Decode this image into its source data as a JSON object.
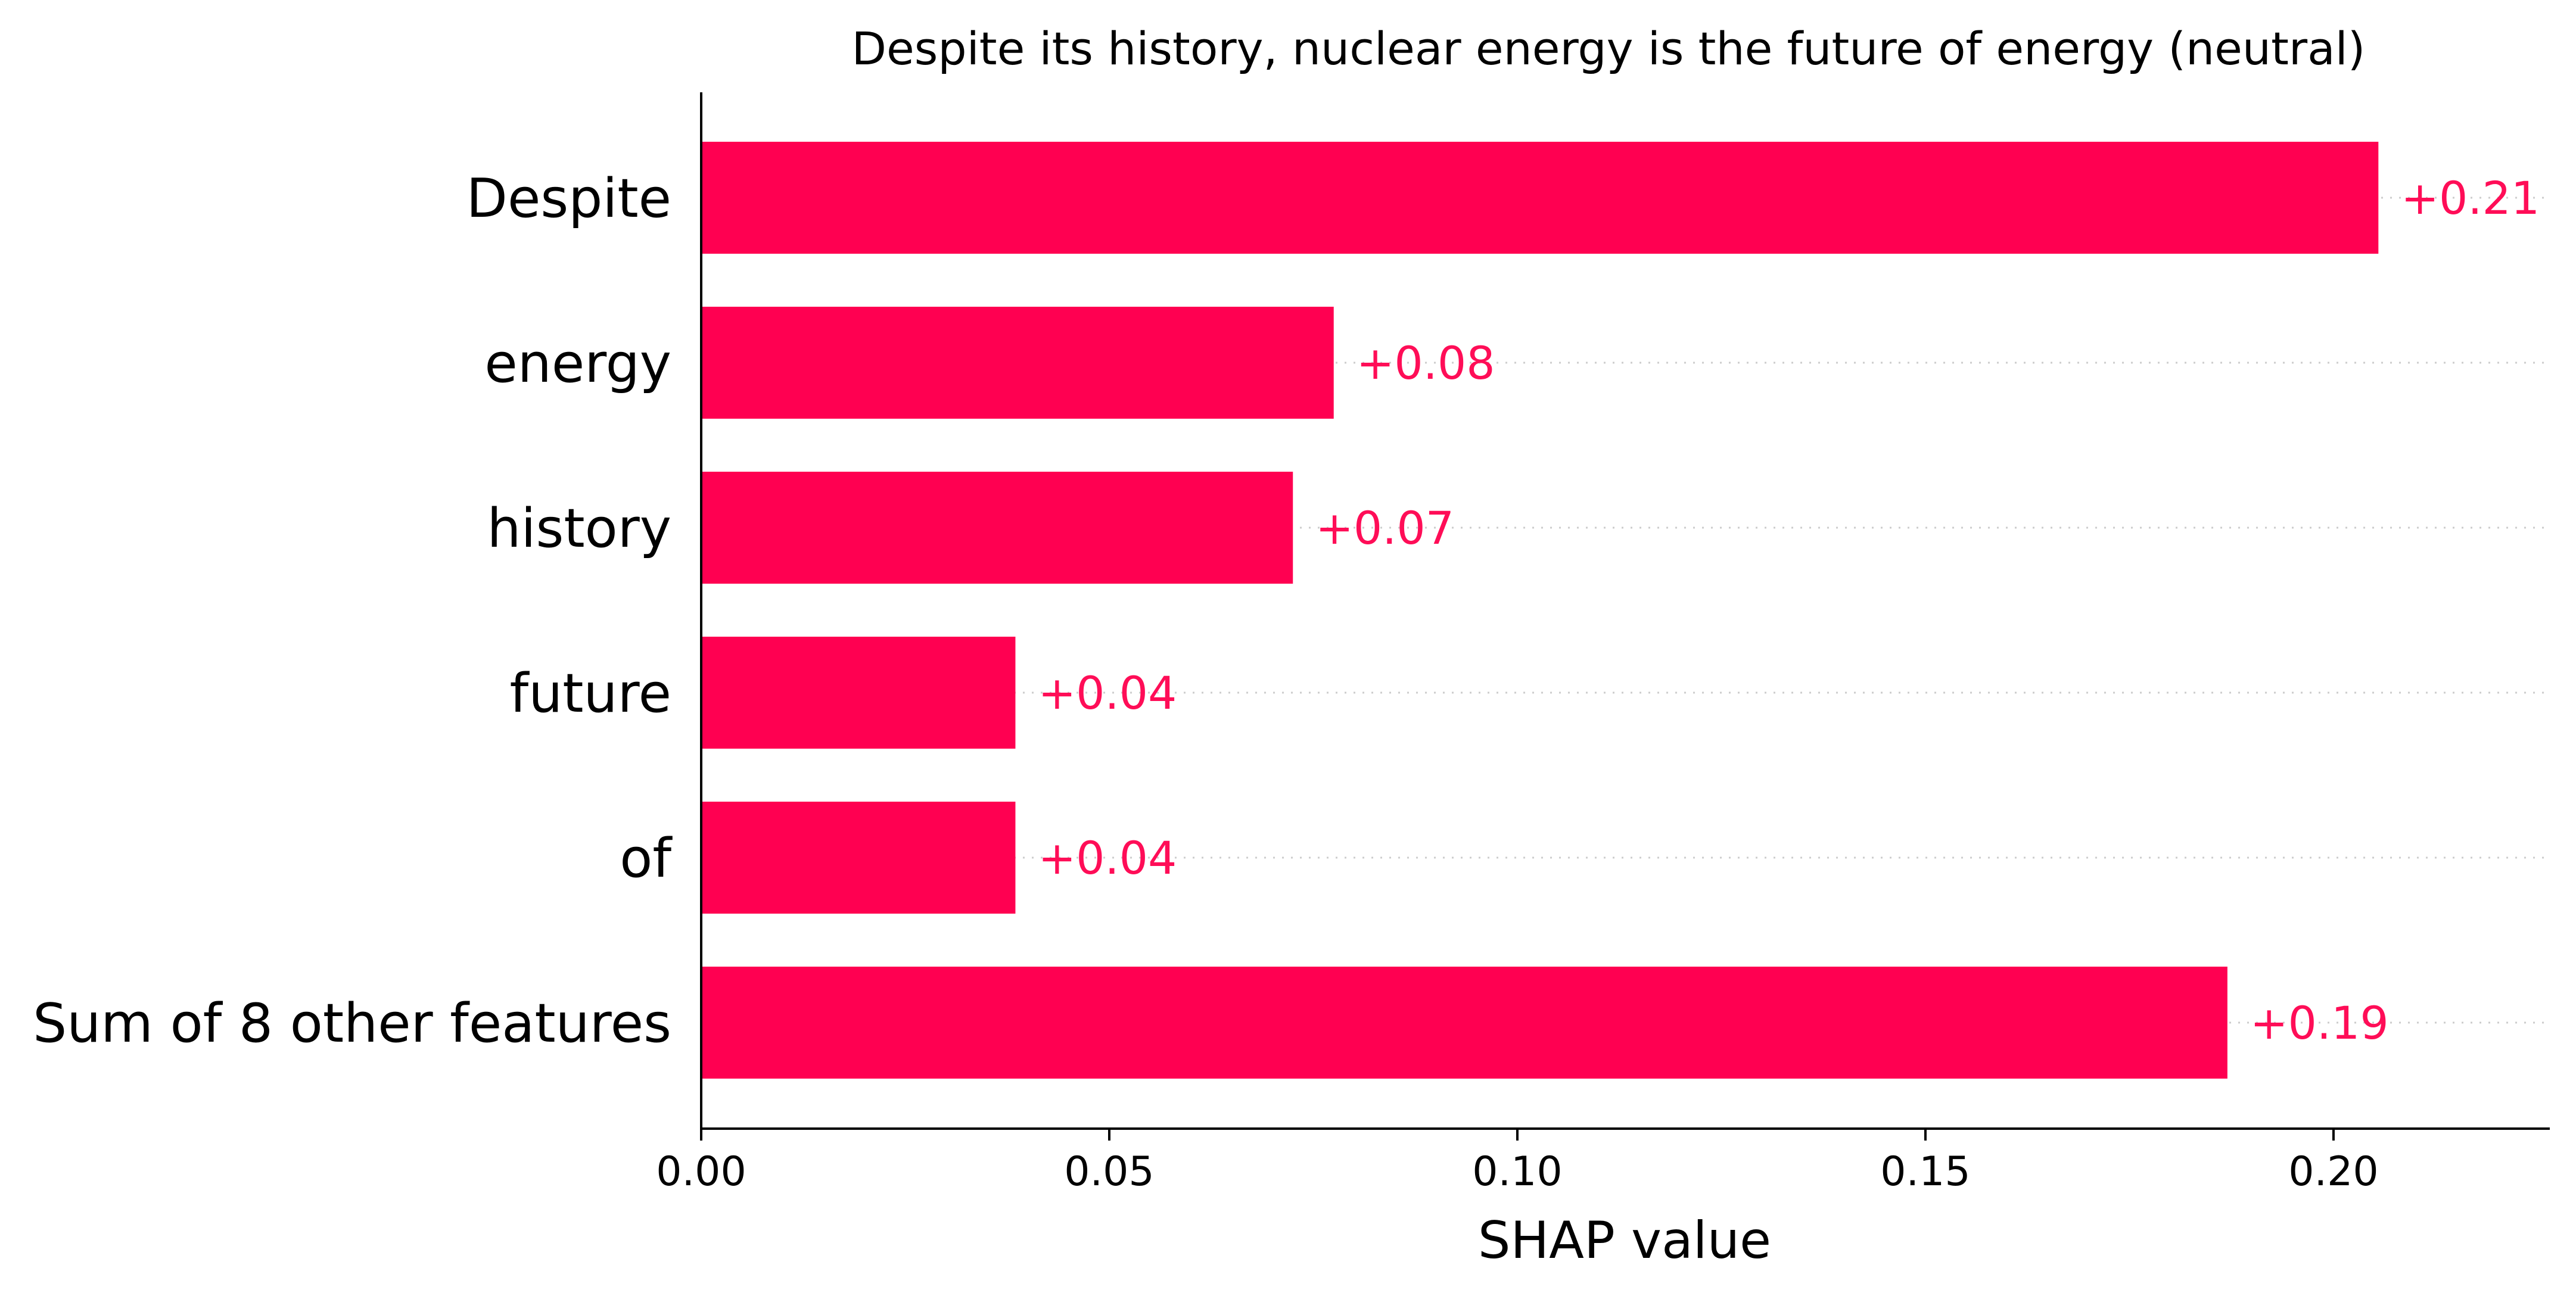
{
  "chart_data": {
    "type": "bar",
    "orientation": "horizontal",
    "title": "Despite its history, nuclear energy is the future of energy (neutral)",
    "xlabel": "SHAP value",
    "ylabel": "",
    "categories": [
      "Despite",
      "energy",
      "history",
      "future",
      "of",
      "Sum of 8 other features"
    ],
    "values": [
      0.2055,
      0.0775,
      0.0725,
      0.0385,
      0.0385,
      0.187
    ],
    "value_labels": [
      "+0.21",
      "+0.08",
      "+0.07",
      "+0.04",
      "+0.04",
      "+0.19"
    ],
    "xlim": [
      0,
      0.2265
    ],
    "x_ticks": [
      0.0,
      0.05,
      0.1,
      0.15,
      0.2
    ],
    "x_tick_labels": [
      "0.00",
      "0.05",
      "0.10",
      "0.15",
      "0.20"
    ],
    "grid": "dotted row guides",
    "bar_color": "#ff0051",
    "label_color": "#ff0d57",
    "guide_color": "#cccccc"
  }
}
